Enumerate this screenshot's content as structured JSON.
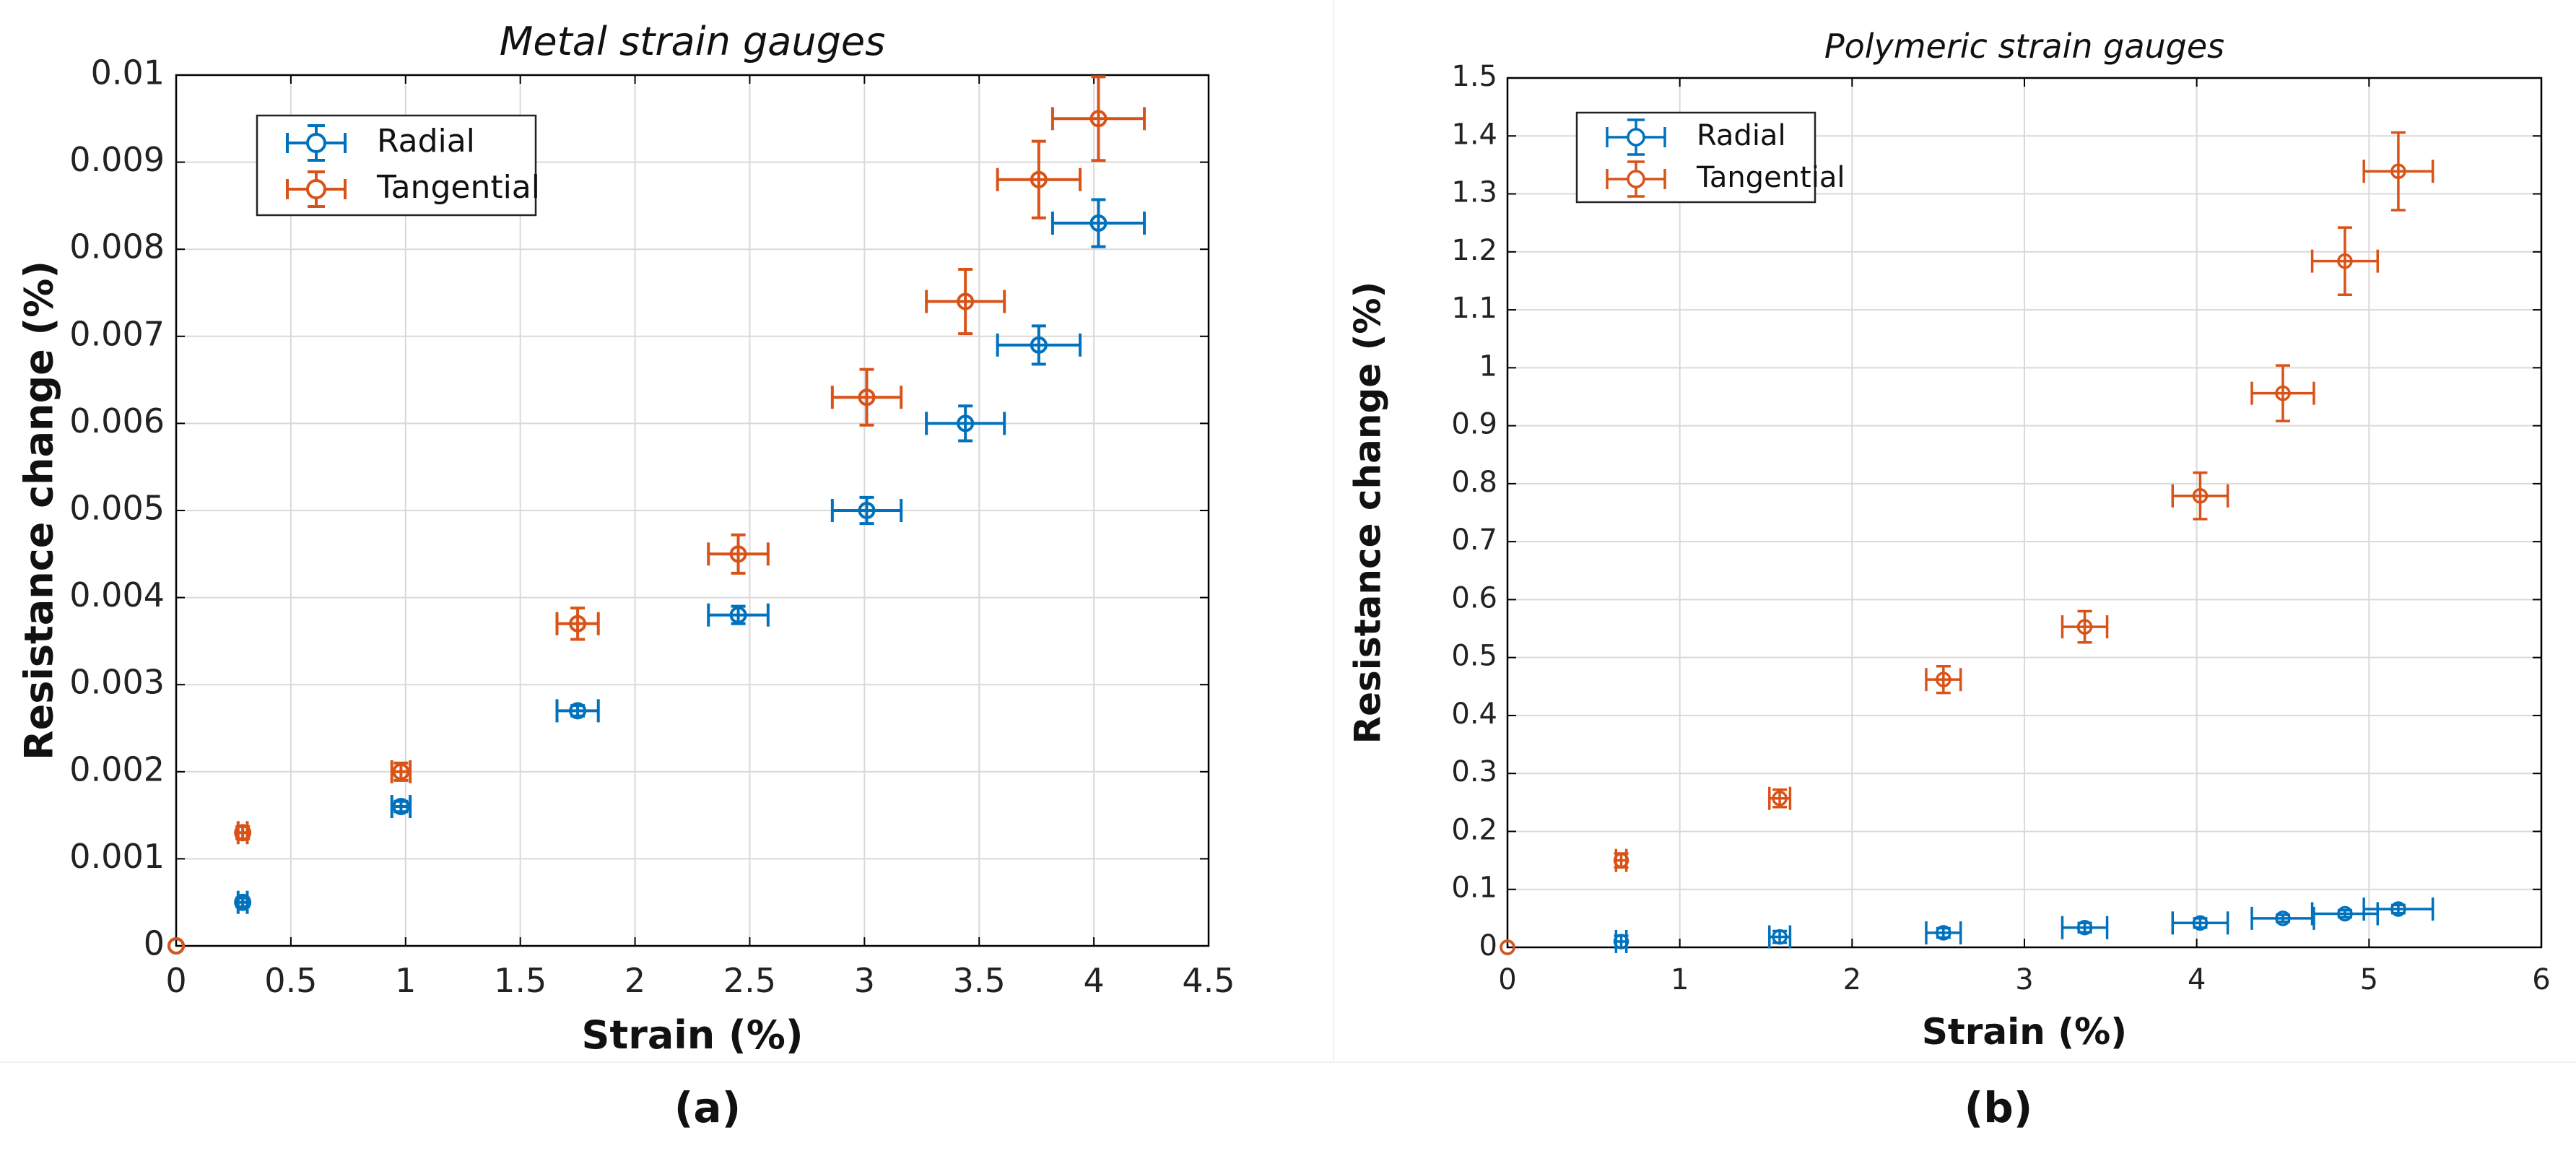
{
  "colors": {
    "radial": "#0072BD",
    "tangential": "#D95319",
    "grid": "#d9d9d9",
    "axis": "#000000"
  },
  "captions": {
    "a": "(a)",
    "b": "(b)"
  },
  "chart_data": [
    {
      "type": "scatter",
      "title": "Metal strain gauges",
      "xlabel": "Strain (%)",
      "ylabel": "Resistance change (%)",
      "xlim": [
        0,
        4.5
      ],
      "ylim": [
        0,
        0.01
      ],
      "xticks": [
        0,
        0.5,
        1,
        1.5,
        2,
        2.5,
        3,
        3.5,
        4,
        4.5
      ],
      "xtick_labels": [
        "0",
        "0.5",
        "1",
        "1.5",
        "2",
        "2.5",
        "3",
        "3.5",
        "4",
        "4.5"
      ],
      "yticks": [
        0,
        0.001,
        0.002,
        0.003,
        0.004,
        0.005,
        0.006,
        0.007,
        0.008,
        0.009,
        0.01
      ],
      "ytick_labels": [
        "0",
        "0.001",
        "0.002",
        "0.003",
        "0.004",
        "0.005",
        "0.006",
        "0.007",
        "0.008",
        "0.009",
        "0.01"
      ],
      "grid": true,
      "legend": {
        "placement": "top-left",
        "entries": [
          "Radial",
          "Tangential"
        ]
      },
      "series": [
        {
          "name": "Radial",
          "x": [
            0,
            0.29,
            0.98,
            1.75,
            2.45,
            3.01,
            3.44,
            3.76,
            4.02
          ],
          "y": [
            0,
            0.0005,
            0.0016,
            0.0027,
            0.0038,
            0.005,
            0.006,
            0.0069,
            0.0083
          ],
          "xerr": [
            0,
            0.02,
            0.04,
            0.09,
            0.13,
            0.15,
            0.17,
            0.18,
            0.2
          ],
          "yerr": [
            0,
            5e-05,
            6e-05,
            6e-05,
            0.0001,
            0.00015,
            0.0002,
            0.00022,
            0.00027
          ]
        },
        {
          "name": "Tangential",
          "x": [
            0,
            0.29,
            0.98,
            1.75,
            2.45,
            3.01,
            3.44,
            3.76,
            4.02
          ],
          "y": [
            0,
            0.0013,
            0.002,
            0.0037,
            0.0045,
            0.0063,
            0.0074,
            0.0088,
            0.0095
          ],
          "xerr": [
            0,
            0.02,
            0.04,
            0.09,
            0.13,
            0.15,
            0.17,
            0.18,
            0.2
          ],
          "yerr": [
            0,
            7e-05,
            0.0001,
            0.00018,
            0.00022,
            0.00032,
            0.00037,
            0.00044,
            0.00048
          ]
        }
      ]
    },
    {
      "type": "scatter",
      "title": "Polymeric strain gauges",
      "xlabel": "Strain (%)",
      "ylabel": "Resistance change (%)",
      "xlim": [
        0,
        6
      ],
      "ylim": [
        0,
        1.5
      ],
      "xticks": [
        0,
        1,
        2,
        3,
        4,
        5,
        6
      ],
      "xtick_labels": [
        "0",
        "1",
        "2",
        "3",
        "4",
        "5",
        "6"
      ],
      "yticks": [
        0,
        0.1,
        0.2,
        0.3,
        0.4,
        0.5,
        0.6,
        0.7,
        0.8,
        0.9,
        1,
        1.1,
        1.2,
        1.3,
        1.4,
        1.5
      ],
      "ytick_labels": [
        "0",
        "0.1",
        "0.2",
        "0.3",
        "0.4",
        "0.5",
        "0.6",
        "0.7",
        "0.8",
        "0.9",
        "1",
        "1.1",
        "1.2",
        "1.3",
        "1.4",
        "1.5"
      ],
      "grid": true,
      "legend": {
        "placement": "top-left",
        "entries": [
          "Radial",
          "Tangential"
        ]
      },
      "series": [
        {
          "name": "Radial",
          "x": [
            0,
            0.66,
            1.58,
            2.53,
            3.35,
            4.02,
            4.5,
            4.86,
            5.17
          ],
          "y": [
            0,
            0.01,
            0.018,
            0.025,
            0.034,
            0.042,
            0.05,
            0.058,
            0.066
          ],
          "xerr": [
            0,
            0.03,
            0.06,
            0.1,
            0.13,
            0.16,
            0.18,
            0.19,
            0.2
          ],
          "yerr": [
            0,
            0.01,
            0.01,
            0.008,
            0.008,
            0.008,
            0.006,
            0.006,
            0.007
          ]
        },
        {
          "name": "Tangential",
          "x": [
            0,
            0.66,
            1.58,
            2.53,
            3.35,
            4.02,
            4.5,
            4.86,
            5.17
          ],
          "y": [
            0,
            0.15,
            0.257,
            0.462,
            0.553,
            0.779,
            0.956,
            1.184,
            1.339
          ],
          "xerr": [
            0,
            0.03,
            0.06,
            0.1,
            0.13,
            0.16,
            0.18,
            0.19,
            0.2
          ],
          "yerr": [
            0,
            0.012,
            0.015,
            0.023,
            0.027,
            0.04,
            0.048,
            0.058,
            0.067
          ]
        }
      ]
    }
  ]
}
